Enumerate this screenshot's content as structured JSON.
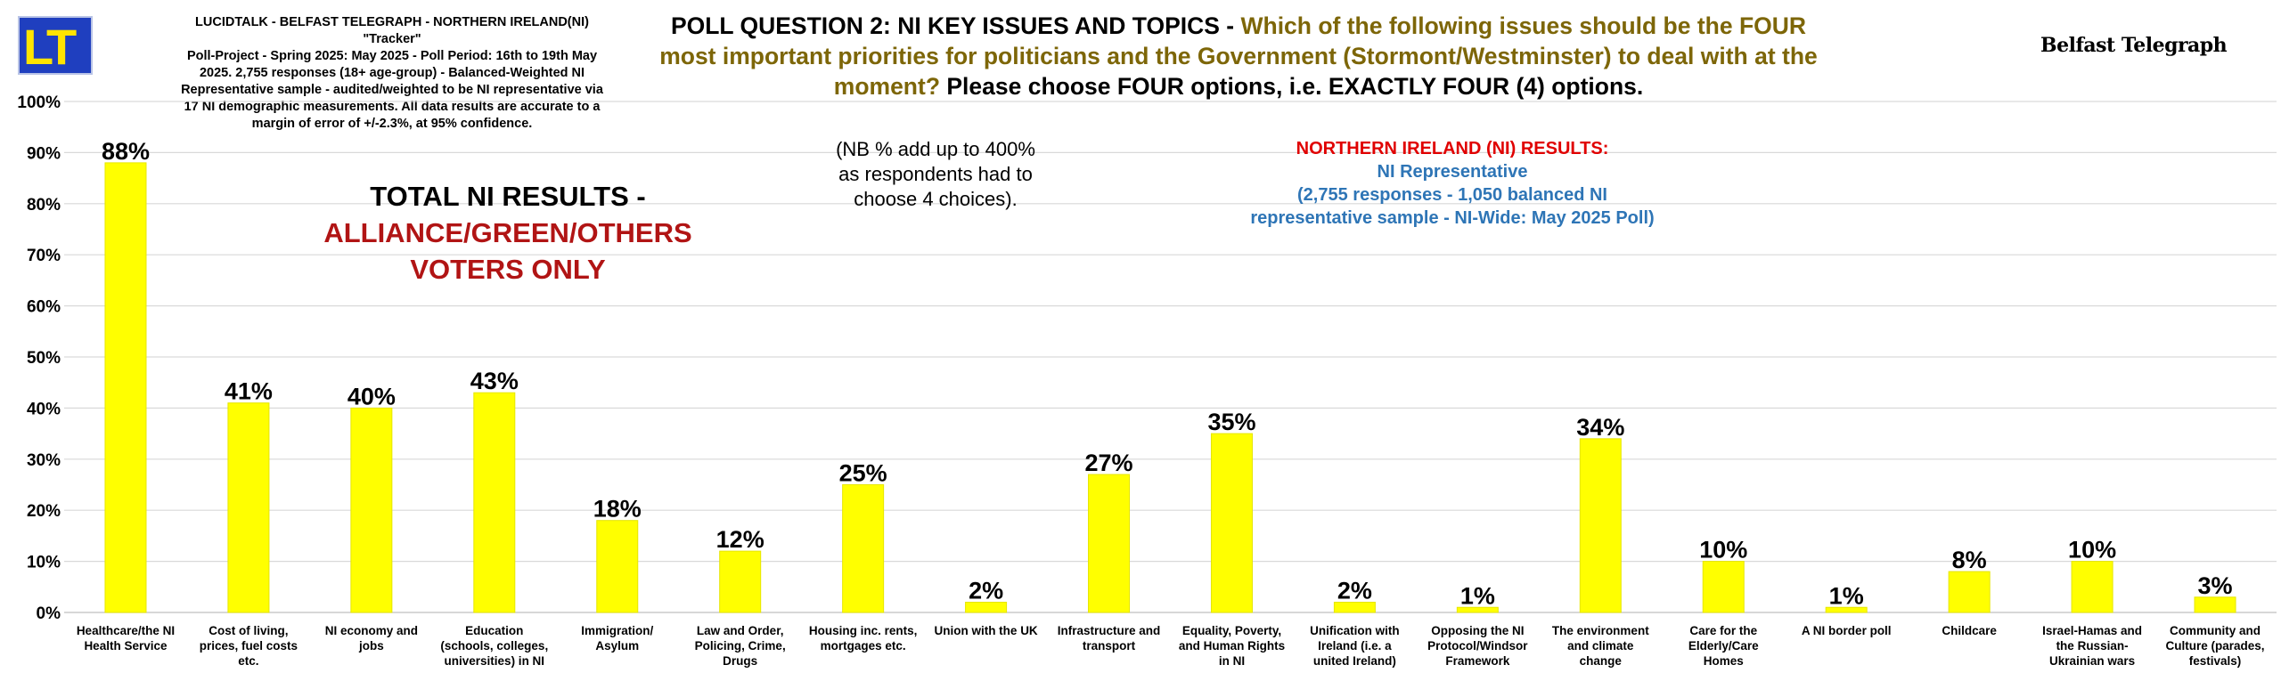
{
  "logo": {
    "text": "LT"
  },
  "info_lines": [
    "LUCIDTALK - BELFAST TELEGRAPH - NORTHERN IRELAND(NI) \"Tracker\"",
    "Poll-Project - Spring 2025: May 2025 - Poll Period: 16th to 19th May",
    "2025. 2,755 responses (18+ age-group) - Balanced-Weighted NI",
    "Representative sample - audited/weighted to be NI representative via",
    "17 NI demographic measurements. All data results are accurate to a",
    "margin of error of +/-2.3%, at 95% confidence."
  ],
  "headline": {
    "part1": "POLL QUESTION 2: NI KEY ISSUES AND TOPICS - ",
    "part2": "Which of the following issues should be the FOUR most important priorities for politicians and the Government (Stormont/Westminster) to deal with at the moment?",
    "part3": " Please choose FOUR options, i.e. EXACTLY FOUR (4) options."
  },
  "brand": "Belfast Telegraph",
  "total_box": {
    "line1": "TOTAL NI RESULTS -",
    "line2": "ALLIANCE/GREEN/OTHERS",
    "line3": "VOTERS ONLY"
  },
  "note": {
    "line1": "(NB % add up to 400%",
    "line2": "as respondents had to",
    "line3": "choose 4 choices)."
  },
  "ni_box": {
    "line1": "NORTHERN IRELAND (NI) RESULTS:",
    "line2": "NI Representative",
    "line3": "(2,755 responses - 1,050 balanced NI",
    "line4": "representative sample - NI-Wide: May 2025 Poll)"
  },
  "colors": {
    "bar": "#ffff00",
    "bar_edge": "#e6e600",
    "grid": "#d9d9d9",
    "title_gold": "#7d6608",
    "red": "#b11414",
    "blue": "#2e75b6"
  },
  "chart_data": {
    "type": "bar",
    "ylim": [
      0,
      100
    ],
    "yticks": [
      "0%",
      "10%",
      "20%",
      "30%",
      "40%",
      "50%",
      "60%",
      "70%",
      "80%",
      "90%",
      "100%"
    ],
    "categories": [
      [
        "Healthcare/the NI",
        "Health Service"
      ],
      [
        "Cost of living,",
        "prices, fuel costs",
        "etc."
      ],
      [
        "NI economy and",
        "jobs"
      ],
      [
        "Education",
        "(schools, colleges,",
        "universities) in NI"
      ],
      [
        "Immigration/",
        "Asylum"
      ],
      [
        "Law and Order,",
        "Policing, Crime,",
        "Drugs"
      ],
      [
        "Housing inc. rents,",
        "mortgages etc."
      ],
      [
        "Union with the UK"
      ],
      [
        "Infrastructure and",
        "transport"
      ],
      [
        "Equality, Poverty,",
        "and Human Rights",
        "in NI"
      ],
      [
        "Unification with",
        "Ireland (i.e. a",
        "united Ireland)"
      ],
      [
        "Opposing the NI",
        "Protocol/Windsor",
        "Framework"
      ],
      [
        "The environment",
        "and climate",
        "change"
      ],
      [
        "Care for the",
        "Elderly/Care",
        "Homes"
      ],
      [
        "A NI border poll"
      ],
      [
        "Childcare"
      ],
      [
        "Israel-Hamas and",
        "the Russian-",
        "Ukrainian wars"
      ],
      [
        "Community and",
        "Culture (parades,",
        "festivals)"
      ]
    ],
    "values": [
      88,
      41,
      40,
      43,
      18,
      12,
      25,
      2,
      27,
      35,
      2,
      1,
      34,
      10,
      1,
      8,
      10,
      3
    ],
    "labels": [
      "88%",
      "41%",
      "40%",
      "43%",
      "18%",
      "12%",
      "25%",
      "2%",
      "27%",
      "35%",
      "2%",
      "1%",
      "34%",
      "10%",
      "1%",
      "8%",
      "10%",
      "3%"
    ]
  }
}
